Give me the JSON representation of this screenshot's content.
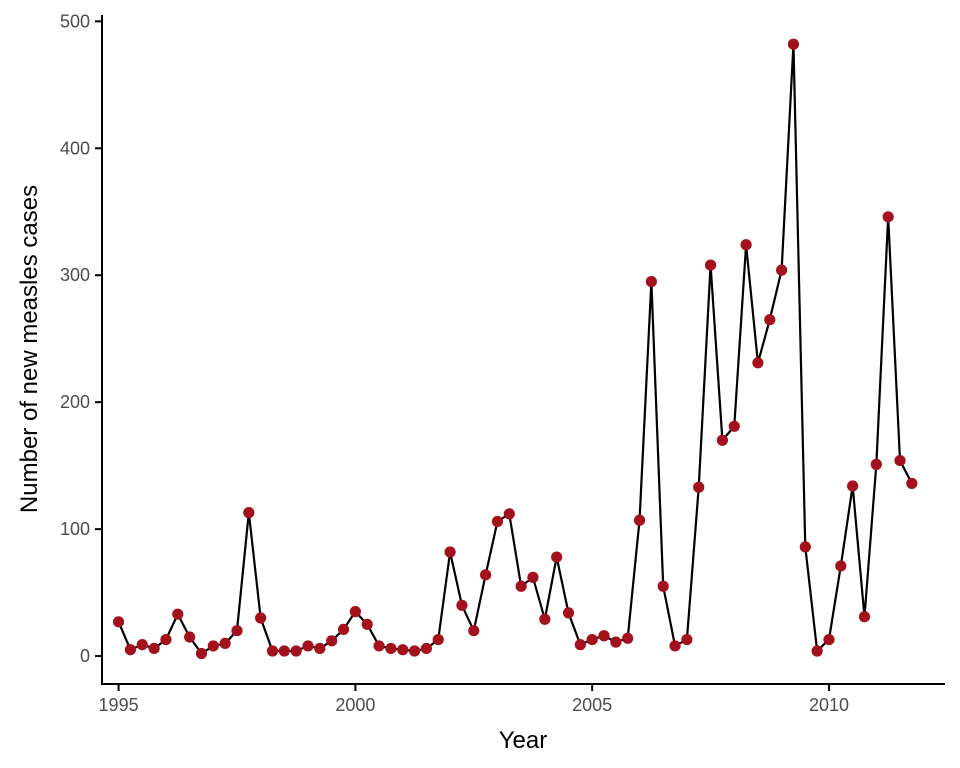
{
  "chart_data": {
    "type": "line",
    "title": "",
    "xlabel": "Year",
    "ylabel": "Number of new measles cases",
    "xlim": [
      1994.65,
      2012.45
    ],
    "ylim": [
      -22,
      505
    ],
    "xticks": [
      1995,
      2000,
      2005,
      2010
    ],
    "yticks": [
      0,
      100,
      200,
      300,
      400,
      500
    ],
    "grid": false,
    "legend": "none",
    "colors": {
      "line": "#000000",
      "point": "#a3111c"
    },
    "x": [
      1995.0,
      1995.25,
      1995.5,
      1995.75,
      1996.0,
      1996.25,
      1996.5,
      1996.75,
      1997.0,
      1997.25,
      1997.5,
      1997.75,
      1998.0,
      1998.25,
      1998.5,
      1998.75,
      1999.0,
      1999.25,
      1999.5,
      1999.75,
      2000.0,
      2000.25,
      2000.5,
      2000.75,
      2001.0,
      2001.25,
      2001.5,
      2001.75,
      2002.0,
      2002.25,
      2002.5,
      2002.75,
      2003.0,
      2003.25,
      2003.5,
      2003.75,
      2004.0,
      2004.25,
      2004.5,
      2004.75,
      2005.0,
      2005.25,
      2005.5,
      2005.75,
      2006.0,
      2006.25,
      2006.5,
      2006.75,
      2007.0,
      2007.25,
      2007.5,
      2007.75,
      2008.0,
      2008.25,
      2008.5,
      2008.75,
      2009.0,
      2009.25,
      2009.5,
      2009.75,
      2010.0,
      2010.25,
      2010.5,
      2010.75,
      2011.0,
      2011.25,
      2011.5,
      2011.75
    ],
    "y": [
      27,
      5,
      9,
      6,
      13,
      33,
      15,
      2,
      8,
      10,
      20,
      113,
      30,
      4,
      4,
      4,
      8,
      6,
      12,
      21,
      35,
      25,
      8,
      6,
      5,
      4,
      6,
      13,
      82,
      40,
      20,
      64,
      106,
      112,
      55,
      62,
      29,
      78,
      34,
      9,
      13,
      16,
      11,
      14,
      107,
      295,
      55,
      8,
      13,
      133,
      308,
      170,
      181,
      324,
      231,
      265,
      304,
      482,
      86,
      4,
      13,
      71,
      134,
      31,
      151,
      346,
      154,
      136
    ]
  }
}
